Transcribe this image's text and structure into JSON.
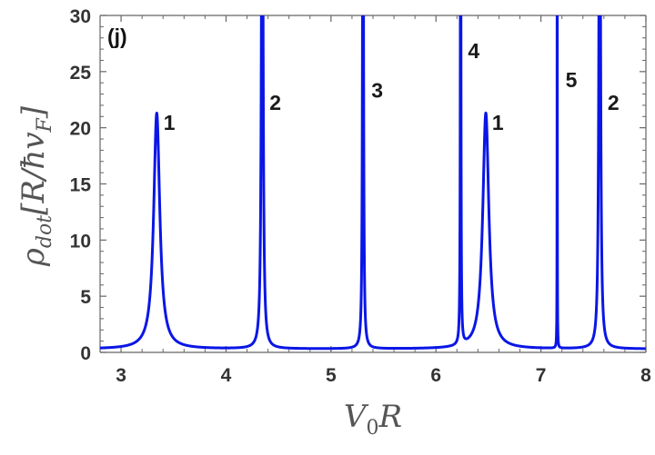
{
  "chart_data": {
    "type": "line",
    "panel_label": "(j)",
    "xlabel": "V₀R",
    "ylabel": "ρdot[R/ħvF]",
    "ylabel_parts": {
      "rho": "ρ",
      "sub": "dot",
      "unit": "[R/ħv",
      "unit_sub": "F",
      "close": "]"
    },
    "xlim": [
      2.8,
      8
    ],
    "ylim": [
      0,
      30
    ],
    "x_ticks": [
      3,
      4,
      5,
      6,
      7,
      8
    ],
    "y_ticks": [
      0,
      5,
      10,
      15,
      20,
      25,
      30
    ],
    "grid": false,
    "color": "#0a16e6",
    "baseline": 0.3,
    "peaks": [
      {
        "x": 3.34,
        "height": 21.3,
        "width": 0.035,
        "label": "1",
        "label_x": 3.46,
        "label_y": 19.8
      },
      {
        "x": 4.345,
        "height": 60,
        "width": 0.008,
        "label": "2",
        "label_x": 4.47,
        "label_y": 21.6
      },
      {
        "x": 5.305,
        "height": 60,
        "width": 0.005,
        "label": "3",
        "label_x": 5.44,
        "label_y": 22.7
      },
      {
        "x": 6.235,
        "height": 60,
        "width": 0.003,
        "label": "4",
        "label_x": 6.36,
        "label_y": 26.2
      },
      {
        "x": 6.475,
        "height": 21.3,
        "width": 0.035,
        "label": "1",
        "label_x": 6.59,
        "label_y": 19.8
      },
      {
        "x": 7.155,
        "height": 60,
        "width": 0.001,
        "label": "5",
        "label_x": 7.29,
        "label_y": 23.6
      },
      {
        "x": 7.56,
        "height": 60,
        "width": 0.008,
        "label": "2",
        "label_x": 7.69,
        "label_y": 21.6
      }
    ]
  }
}
